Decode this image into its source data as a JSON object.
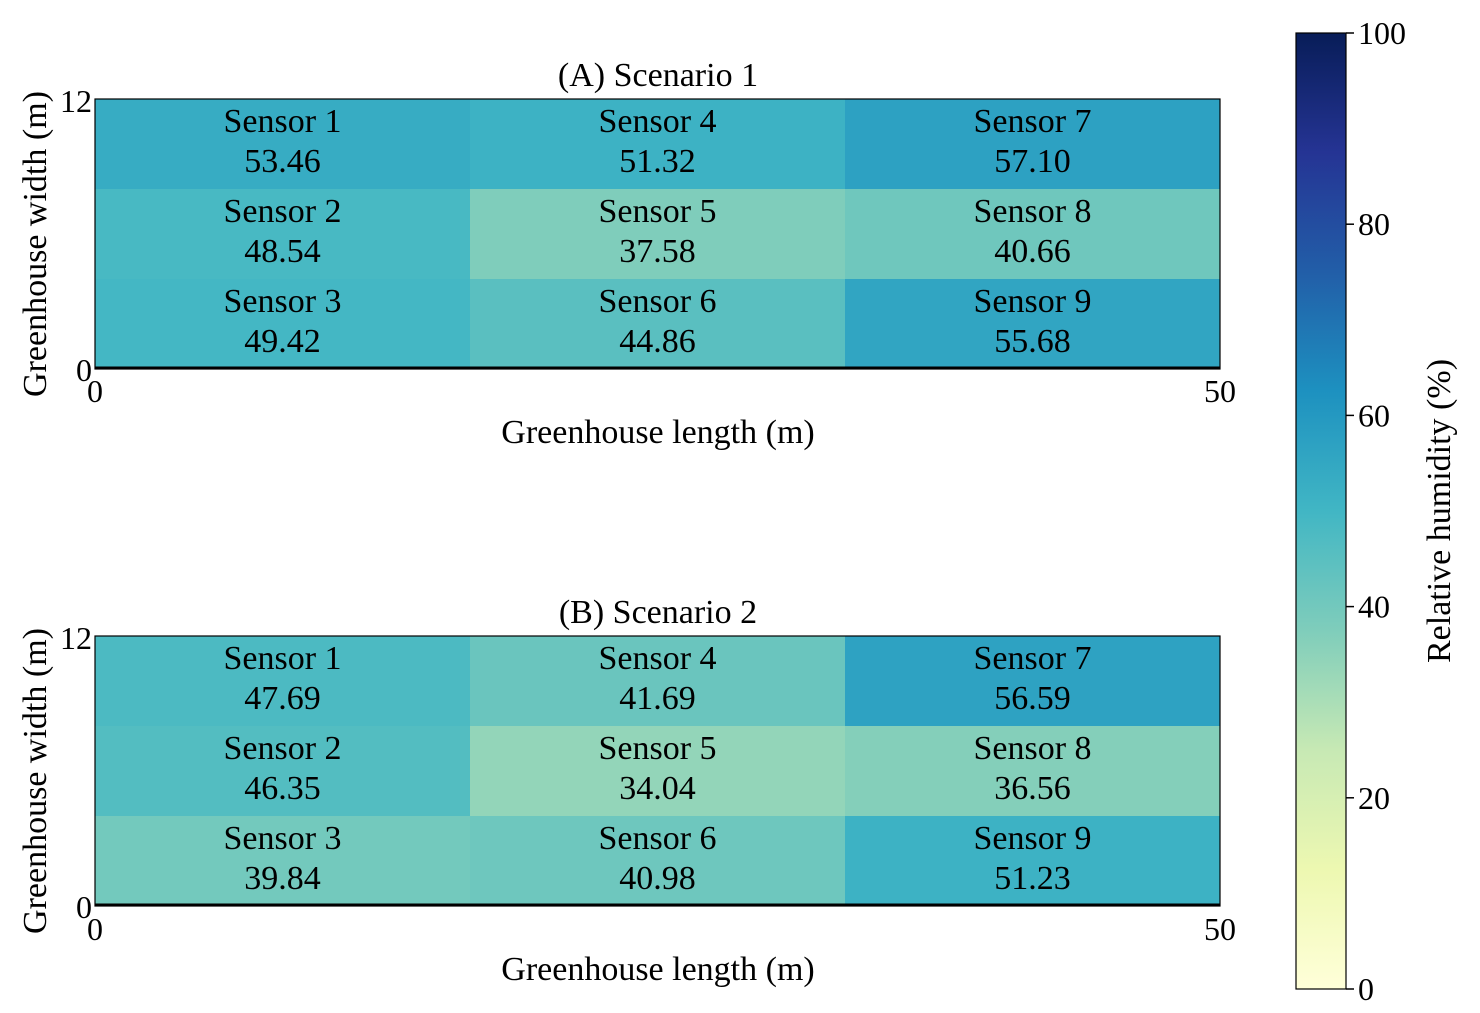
{
  "chart_data": {
    "type": "heatmap",
    "colormap": "YlGnBu",
    "colorbar": {
      "label": "Relative humidity (%)",
      "range": [
        0,
        100
      ],
      "ticks": [
        "0",
        "20",
        "40",
        "60",
        "80",
        "100"
      ],
      "tick_values": [
        0,
        20,
        40,
        60,
        80,
        100
      ]
    },
    "panels": [
      {
        "title": "(A) Scenario 1",
        "xlabel": "Greenhouse length (m)",
        "ylabel": "Greenhouse width (m)",
        "xlim": [
          0,
          50
        ],
        "ylim": [
          0,
          12
        ],
        "xticks": [
          "0",
          "50"
        ],
        "yticks": [
          "0",
          "12"
        ],
        "sensors": [
          {
            "name": "Sensor 1",
            "value": 53.46,
            "display": "53.46",
            "col": 0,
            "row": 0
          },
          {
            "name": "Sensor 4",
            "value": 51.32,
            "display": "51.32",
            "col": 1,
            "row": 0
          },
          {
            "name": "Sensor 7",
            "value": 57.1,
            "display": "57.10",
            "col": 2,
            "row": 0
          },
          {
            "name": "Sensor 2",
            "value": 48.54,
            "display": "48.54",
            "col": 0,
            "row": 1
          },
          {
            "name": "Sensor 5",
            "value": 37.58,
            "display": "37.58",
            "col": 1,
            "row": 1
          },
          {
            "name": "Sensor 8",
            "value": 40.66,
            "display": "40.66",
            "col": 2,
            "row": 1
          },
          {
            "name": "Sensor 3",
            "value": 49.42,
            "display": "49.42",
            "col": 0,
            "row": 2
          },
          {
            "name": "Sensor 6",
            "value": 44.86,
            "display": "44.86",
            "col": 1,
            "row": 2
          },
          {
            "name": "Sensor 9",
            "value": 55.68,
            "display": "55.68",
            "col": 2,
            "row": 2
          }
        ]
      },
      {
        "title": "(B) Scenario 2",
        "xlabel": "Greenhouse length (m)",
        "ylabel": "Greenhouse width (m)",
        "xlim": [
          0,
          50
        ],
        "ylim": [
          0,
          12
        ],
        "xticks": [
          "0",
          "50"
        ],
        "yticks": [
          "0",
          "12"
        ],
        "sensors": [
          {
            "name": "Sensor 1",
            "value": 47.69,
            "display": "47.69",
            "col": 0,
            "row": 0
          },
          {
            "name": "Sensor 4",
            "value": 41.69,
            "display": "41.69",
            "col": 1,
            "row": 0
          },
          {
            "name": "Sensor 7",
            "value": 56.59,
            "display": "56.59",
            "col": 2,
            "row": 0
          },
          {
            "name": "Sensor 2",
            "value": 46.35,
            "display": "46.35",
            "col": 0,
            "row": 1
          },
          {
            "name": "Sensor 5",
            "value": 34.04,
            "display": "34.04",
            "col": 1,
            "row": 1
          },
          {
            "name": "Sensor 8",
            "value": 36.56,
            "display": "36.56",
            "col": 2,
            "row": 1
          },
          {
            "name": "Sensor 3",
            "value": 39.84,
            "display": "39.84",
            "col": 0,
            "row": 2
          },
          {
            "name": "Sensor 6",
            "value": 40.98,
            "display": "40.98",
            "col": 1,
            "row": 2
          },
          {
            "name": "Sensor 9",
            "value": 51.23,
            "display": "51.23",
            "col": 2,
            "row": 2
          }
        ]
      }
    ]
  }
}
